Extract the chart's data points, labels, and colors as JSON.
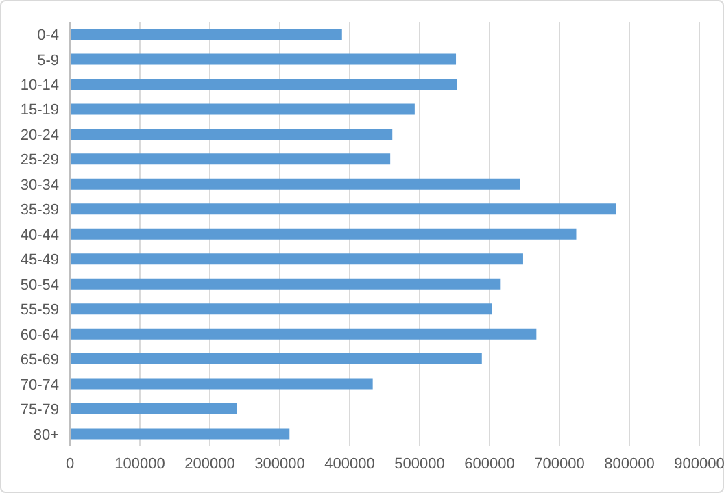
{
  "chart_data": {
    "type": "bar",
    "orientation": "horizontal",
    "categories": [
      "0-4",
      "5-9",
      "10-14",
      "15-19",
      "20-24",
      "25-29",
      "30-34",
      "35-39",
      "40-44",
      "45-49",
      "50-54",
      "55-59",
      "60-64",
      "65-69",
      "70-74",
      "75-79",
      "80+"
    ],
    "values": [
      389000,
      552000,
      553000,
      493000,
      461000,
      458000,
      644000,
      781000,
      724000,
      648000,
      616000,
      603000,
      667000,
      589000,
      433000,
      239000,
      314000
    ],
    "color": "#5b9bd5",
    "xlim": [
      0,
      900000
    ],
    "xticks": [
      0,
      100000,
      200000,
      300000,
      400000,
      500000,
      600000,
      700000,
      800000,
      900000
    ],
    "grid": "x",
    "legend": false
  }
}
